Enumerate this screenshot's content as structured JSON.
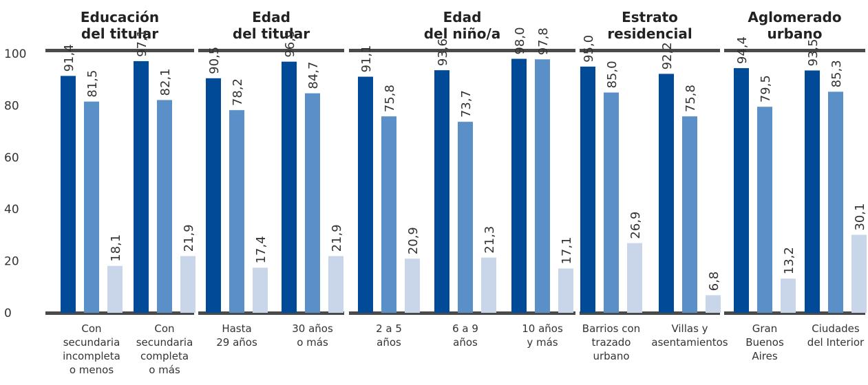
{
  "chart_data": {
    "type": "bar",
    "ylim": [
      0,
      100
    ],
    "y_ticks": [
      "0",
      "20",
      "40",
      "60",
      "80",
      "100"
    ],
    "grid": false,
    "colors": [
      "#004A97",
      "#5B8FC7",
      "#C9D6EA"
    ],
    "groups": [
      {
        "title": [
          "Educación",
          "del titular"
        ],
        "categories": [
          {
            "label": [
              "Con",
              "secundaria",
              "incompleta",
              "o menos"
            ],
            "values": [
              91.4,
              81.5,
              18.1
            ],
            "labels": [
              "91,4",
              "81,5",
              "18,1"
            ]
          },
          {
            "label": [
              "Con",
              "secundaria",
              "completa",
              "o más"
            ],
            "values": [
              97.1,
              82.1,
              21.9
            ],
            "labels": [
              "97,1",
              "82,1",
              "21,9"
            ]
          }
        ]
      },
      {
        "title": [
          "Edad",
          "del titular"
        ],
        "categories": [
          {
            "label": [
              "Hasta",
              "29 años"
            ],
            "values": [
              90.5,
              78.2,
              17.4
            ],
            "labels": [
              "90,5",
              "78,2",
              "17,4"
            ]
          },
          {
            "label": [
              "30 años",
              "o más"
            ],
            "values": [
              96.9,
              84.7,
              21.9
            ],
            "labels": [
              "96,9",
              "84,7",
              "21,9"
            ]
          }
        ]
      },
      {
        "title": [
          "Edad",
          "del niño/a"
        ],
        "categories": [
          {
            "label": [
              "2 a 5",
              "años"
            ],
            "values": [
              91.1,
              75.8,
              20.9
            ],
            "labels": [
              "91,1",
              "75,8",
              "20,9"
            ]
          },
          {
            "label": [
              "6 a 9",
              "años"
            ],
            "values": [
              93.6,
              73.7,
              21.3
            ],
            "labels": [
              "93,6",
              "73,7",
              "21,3"
            ]
          },
          {
            "label": [
              "10 años",
              "y más"
            ],
            "values": [
              98.0,
              97.8,
              17.1
            ],
            "labels": [
              "98,0",
              "97,8",
              "17,1"
            ]
          }
        ]
      },
      {
        "title": [
          "Estrato",
          "residencial"
        ],
        "categories": [
          {
            "label": [
              "Barrios con",
              "trazado",
              "urbano"
            ],
            "values": [
              95.0,
              85.0,
              26.9
            ],
            "labels": [
              "95,0",
              "85,0",
              "26,9"
            ]
          },
          {
            "label": [
              "Villas y",
              "asentamientos"
            ],
            "values": [
              92.2,
              75.8,
              6.8
            ],
            "labels": [
              "92,2",
              "75,8",
              "6,8"
            ]
          }
        ]
      },
      {
        "title": [
          "Aglomerado",
          "urbano"
        ],
        "categories": [
          {
            "label": [
              "Gran",
              "Buenos",
              "Aires"
            ],
            "values": [
              94.4,
              79.5,
              13.2
            ],
            "labels": [
              "94,4",
              "79,5",
              "13,2"
            ]
          },
          {
            "label": [
              "Ciudades",
              "del Interior"
            ],
            "values": [
              93.5,
              85.3,
              30.1
            ],
            "labels": [
              "93,5",
              "85,3",
              "30,1"
            ]
          }
        ]
      }
    ]
  }
}
